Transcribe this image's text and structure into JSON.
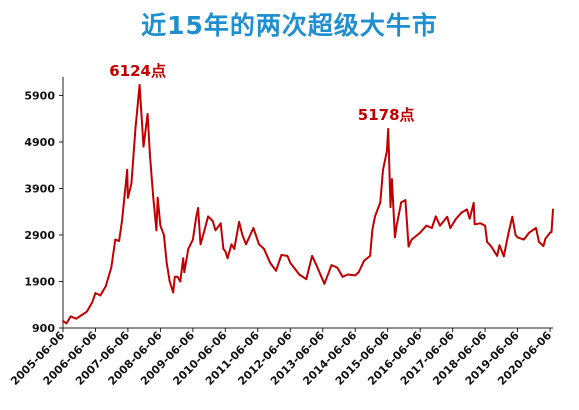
{
  "chart_data": {
    "type": "line",
    "title": "近15年的两次超级大牛市",
    "xlabel": "",
    "ylabel": "",
    "ylim": [
      900,
      6124
    ],
    "yticks": [
      900,
      1900,
      2900,
      3900,
      4900,
      5900
    ],
    "ytick_labels": [
      "900",
      "1900",
      "2900",
      "3900",
      "4900",
      "5900"
    ],
    "xtick_labels": [
      "2005-06-06",
      "2006-06-06",
      "2007-06-06",
      "2008-06-06",
      "2009-06-06",
      "2010-06-06",
      "2011-06-06",
      "2012-06-06",
      "2013-06-06",
      "2014-06-06",
      "2015-06-06",
      "2016-06-06",
      "2017-06-06",
      "2018-06-06",
      "2019-06-06",
      "2020-06-06"
    ],
    "grid": false,
    "line_color": "#c00000",
    "series": [
      {
        "name": "",
        "color": "#c00000",
        "points": [
          [
            "2005-06-06",
            1050
          ],
          [
            "2005-07-15",
            1000
          ],
          [
            "2005-09-01",
            1150
          ],
          [
            "2005-11-01",
            1100
          ],
          [
            "2006-01-04",
            1180
          ],
          [
            "2006-03-01",
            1250
          ],
          [
            "2006-05-01",
            1450
          ],
          [
            "2006-06-06",
            1650
          ],
          [
            "2006-08-01",
            1600
          ],
          [
            "2006-10-01",
            1800
          ],
          [
            "2006-12-01",
            2200
          ],
          [
            "2007-01-15",
            2800
          ],
          [
            "2007-02-27",
            2770
          ],
          [
            "2007-04-01",
            3200
          ],
          [
            "2007-05-29",
            4300
          ],
          [
            "2007-06-06",
            3700
          ],
          [
            "2007-07-15",
            4000
          ],
          [
            "2007-08-31",
            5200
          ],
          [
            "2007-10-16",
            6124
          ],
          [
            "2007-11-28",
            4800
          ],
          [
            "2008-01-14",
            5500
          ],
          [
            "2008-02-10",
            4600
          ],
          [
            "2008-03-18",
            3700
          ],
          [
            "2008-04-22",
            3000
          ],
          [
            "2008-05-06",
            3700
          ],
          [
            "2008-06-06",
            3100
          ],
          [
            "2008-07-15",
            2900
          ],
          [
            "2008-08-15",
            2300
          ],
          [
            "2008-09-18",
            1900
          ],
          [
            "2008-10-28",
            1664
          ],
          [
            "2008-11-15",
            2000
          ],
          [
            "2008-12-15",
            2000
          ],
          [
            "2009-01-15",
            1900
          ],
          [
            "2009-02-17",
            2400
          ],
          [
            "2009-03-02",
            2100
          ],
          [
            "2009-04-15",
            2600
          ],
          [
            "2009-06-06",
            2800
          ],
          [
            "2009-07-15",
            3300
          ],
          [
            "2009-08-04",
            3478
          ],
          [
            "2009-08-31",
            2700
          ],
          [
            "2009-10-15",
            3000
          ],
          [
            "2009-11-24",
            3300
          ],
          [
            "2010-01-15",
            3200
          ],
          [
            "2010-02-15",
            3000
          ],
          [
            "2010-04-15",
            3150
          ],
          [
            "2010-05-15",
            2600
          ],
          [
            "2010-06-06",
            2550
          ],
          [
            "2010-07-02",
            2400
          ],
          [
            "2010-08-15",
            2700
          ],
          [
            "2010-09-15",
            2600
          ],
          [
            "2010-11-08",
            3180
          ],
          [
            "2010-12-15",
            2900
          ],
          [
            "2011-01-25",
            2700
          ],
          [
            "2011-04-18",
            3050
          ],
          [
            "2011-06-20",
            2700
          ],
          [
            "2011-08-15",
            2600
          ],
          [
            "2011-10-24",
            2300
          ],
          [
            "2011-12-28",
            2130
          ],
          [
            "2012-02-27",
            2470
          ],
          [
            "2012-05-04",
            2450
          ],
          [
            "2012-06-06",
            2300
          ],
          [
            "2012-09-15",
            2050
          ],
          [
            "2012-12-03",
            1950
          ],
          [
            "2013-02-06",
            2450
          ],
          [
            "2013-03-15",
            2300
          ],
          [
            "2013-06-25",
            1850
          ],
          [
            "2013-09-12",
            2250
          ],
          [
            "2013-11-15",
            2200
          ],
          [
            "2014-01-15",
            2000
          ],
          [
            "2014-03-15",
            2050
          ],
          [
            "2014-06-06",
            2030
          ],
          [
            "2014-07-15",
            2100
          ],
          [
            "2014-09-15",
            2350
          ],
          [
            "2014-11-20",
            2450
          ],
          [
            "2014-12-15",
            3000
          ],
          [
            "2015-01-15",
            3300
          ],
          [
            "2015-03-15",
            3600
          ],
          [
            "2015-04-15",
            4300
          ],
          [
            "2015-05-28",
            4700
          ],
          [
            "2015-06-12",
            5178
          ],
          [
            "2015-07-08",
            3500
          ],
          [
            "2015-07-24",
            4100
          ],
          [
            "2015-08-26",
            2850
          ],
          [
            "2015-09-15",
            3100
          ],
          [
            "2015-11-05",
            3600
          ],
          [
            "2015-12-23",
            3650
          ],
          [
            "2016-01-28",
            2650
          ],
          [
            "2016-03-01",
            2800
          ],
          [
            "2016-06-06",
            2950
          ],
          [
            "2016-08-15",
            3100
          ],
          [
            "2016-10-15",
            3050
          ],
          [
            "2016-11-29",
            3300
          ],
          [
            "2017-01-15",
            3100
          ],
          [
            "2017-04-06",
            3290
          ],
          [
            "2017-05-11",
            3050
          ],
          [
            "2017-07-15",
            3250
          ],
          [
            "2017-09-15",
            3380
          ],
          [
            "2017-11-14",
            3450
          ],
          [
            "2017-12-15",
            3250
          ],
          [
            "2018-01-29",
            3590
          ],
          [
            "2018-02-09",
            3130
          ],
          [
            "2018-04-15",
            3150
          ],
          [
            "2018-06-06",
            3100
          ],
          [
            "2018-06-29",
            2750
          ],
          [
            "2018-08-15",
            2650
          ],
          [
            "2018-10-19",
            2450
          ],
          [
            "2018-11-15",
            2680
          ],
          [
            "2019-01-03",
            2440
          ],
          [
            "2019-02-25",
            2950
          ],
          [
            "2019-04-08",
            3290
          ],
          [
            "2019-05-15",
            2900
          ],
          [
            "2019-06-06",
            2850
          ],
          [
            "2019-08-15",
            2800
          ],
          [
            "2019-10-15",
            2950
          ],
          [
            "2019-12-31",
            3050
          ],
          [
            "2020-02-03",
            2750
          ],
          [
            "2020-03-23",
            2660
          ],
          [
            "2020-04-15",
            2820
          ],
          [
            "2020-06-06",
            2950
          ],
          [
            "2020-06-22",
            2960
          ],
          [
            "2020-07-09",
            3450
          ]
        ]
      }
    ],
    "annotations": [
      {
        "text": "6124点",
        "x": "2007-10-16",
        "y": 6124,
        "color": "#c00000"
      },
      {
        "text": "5178点",
        "x": "2015-06-12",
        "y": 5178,
        "color": "#c00000"
      }
    ]
  }
}
